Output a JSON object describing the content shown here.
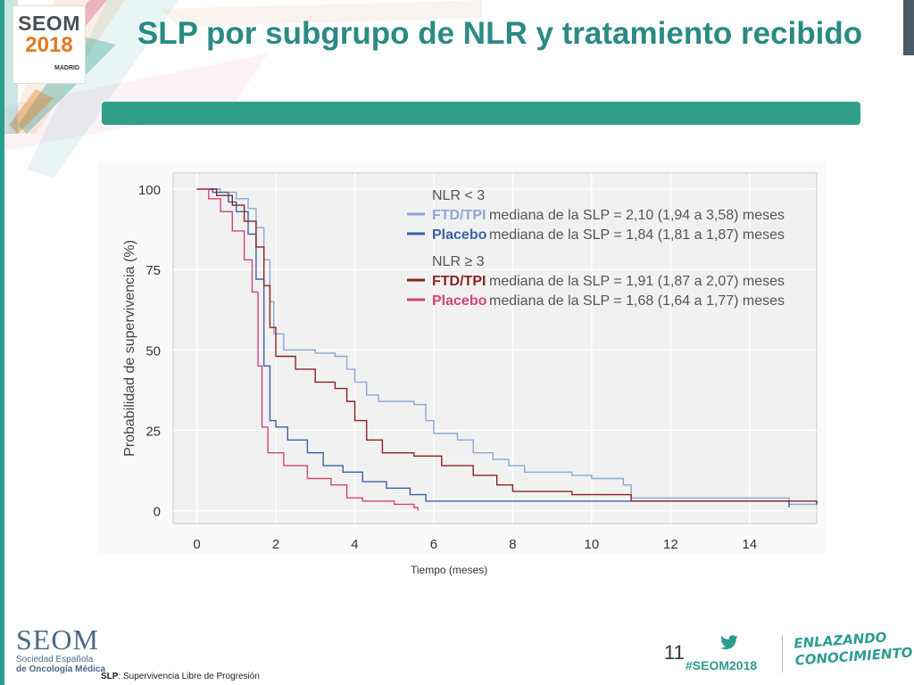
{
  "slide": {
    "title": "SLP por subgrupo de NLR y tratamiento recibido",
    "footnote_abbr": "SLP",
    "footnote_text": ": Supervivencia Libre de Progresión",
    "page_number": "11",
    "hashtag": "#SEOM2018",
    "tagline": [
      "ENLAZANDO",
      "CONOCIMIENTO"
    ],
    "brand": {
      "top_logo": [
        "SEOM",
        "2018",
        "MADRID"
      ],
      "bottom_logo": [
        "SEOM",
        "Sociedad Española",
        "de Oncología Médica"
      ]
    },
    "colors": {
      "title": "#2b8a84",
      "accent_bar": "#2f9f88",
      "ftd_low": "#8da7d8",
      "placebo_low": "#3a62a8",
      "ftd_high": "#8b2323",
      "placebo_high": "#d0467a"
    }
  },
  "chart_data": {
    "type": "line",
    "xlabel": "Tiempo (meses)",
    "ylabel": "Probabilidad de supervivencia (%)",
    "xlim": [
      -0.6,
      15.7
    ],
    "ylim": [
      -4,
      105
    ],
    "xticks": [
      0,
      2,
      4,
      6,
      8,
      10,
      12,
      14
    ],
    "yticks": [
      0,
      25,
      50,
      75,
      100
    ],
    "grid": true,
    "legend_position": "top-right",
    "groups": [
      {
        "title": "NLR < 3",
        "series": [
          {
            "name": "FTD/TPI",
            "desc": "mediana de la SLP = 2,10 (1,94 a 3,58) meses",
            "color": "#8da7d8",
            "points": [
              [
                0,
                100
              ],
              [
                0.6,
                99
              ],
              [
                1.0,
                97
              ],
              [
                1.3,
                94
              ],
              [
                1.5,
                88
              ],
              [
                1.7,
                78
              ],
              [
                1.85,
                65
              ],
              [
                1.95,
                55
              ],
              [
                2.2,
                50
              ],
              [
                3.0,
                49
              ],
              [
                3.5,
                48
              ],
              [
                3.8,
                44
              ],
              [
                4.0,
                40
              ],
              [
                4.3,
                36
              ],
              [
                4.6,
                34
              ],
              [
                5.5,
                33
              ],
              [
                5.8,
                28
              ],
              [
                6.0,
                24
              ],
              [
                6.6,
                22
              ],
              [
                7.0,
                18
              ],
              [
                7.5,
                16
              ],
              [
                7.9,
                14
              ],
              [
                8.3,
                12
              ],
              [
                9.5,
                11
              ],
              [
                10.0,
                10
              ],
              [
                10.8,
                8
              ],
              [
                11.0,
                4
              ],
              [
                15.0,
                4
              ],
              [
                15.0,
                2
              ],
              [
                15.7,
                2
              ]
            ]
          },
          {
            "name": "Placebo",
            "desc": "mediana de la SLP = 1,84 (1,81 a 1,87) meses",
            "color": "#3a62a8",
            "points": [
              [
                0,
                100
              ],
              [
                0.4,
                99
              ],
              [
                0.8,
                96
              ],
              [
                1.0,
                93
              ],
              [
                1.3,
                86
              ],
              [
                1.5,
                72
              ],
              [
                1.7,
                45
              ],
              [
                1.85,
                28
              ],
              [
                2.0,
                26
              ],
              [
                2.3,
                22
              ],
              [
                2.8,
                18
              ],
              [
                3.2,
                14
              ],
              [
                3.7,
                12
              ],
              [
                4.2,
                9
              ],
              [
                4.8,
                7
              ],
              [
                5.4,
                5
              ],
              [
                5.8,
                3
              ],
              [
                15.0,
                3
              ],
              [
                15.0,
                1
              ]
            ]
          }
        ]
      },
      {
        "title": "NLR ≥ 3",
        "series": [
          {
            "name": "FTD/TPI",
            "desc": "mediana de la SLP = 1,91 (1,87 a 2,07) meses",
            "color": "#8b2323",
            "points": [
              [
                0,
                100
              ],
              [
                0.5,
                98
              ],
              [
                0.9,
                95
              ],
              [
                1.2,
                90
              ],
              [
                1.5,
                82
              ],
              [
                1.7,
                70
              ],
              [
                1.85,
                57
              ],
              [
                2.0,
                48
              ],
              [
                2.5,
                44
              ],
              [
                3.0,
                40
              ],
              [
                3.5,
                38
              ],
              [
                3.8,
                34
              ],
              [
                4.0,
                28
              ],
              [
                4.3,
                22
              ],
              [
                4.7,
                18
              ],
              [
                5.5,
                17
              ],
              [
                6.2,
                14
              ],
              [
                7.0,
                11
              ],
              [
                7.6,
                8
              ],
              [
                8.0,
                6
              ],
              [
                9.5,
                5
              ],
              [
                11.0,
                3
              ],
              [
                15.0,
                3
              ],
              [
                15.7,
                2
              ]
            ]
          },
          {
            "name": "Placebo",
            "desc": "mediana de la SLP = 1,68 (1,64 a 1,77) meses",
            "color": "#d0467a",
            "points": [
              [
                0,
                100
              ],
              [
                0.3,
                97
              ],
              [
                0.6,
                93
              ],
              [
                0.9,
                87
              ],
              [
                1.2,
                78
              ],
              [
                1.4,
                68
              ],
              [
                1.55,
                45
              ],
              [
                1.65,
                26
              ],
              [
                1.8,
                18
              ],
              [
                2.2,
                14
              ],
              [
                2.8,
                10
              ],
              [
                3.4,
                8
              ],
              [
                3.8,
                4
              ],
              [
                4.2,
                3
              ],
              [
                5.0,
                2
              ],
              [
                5.5,
                1
              ],
              [
                5.6,
                0
              ]
            ]
          }
        ]
      }
    ]
  }
}
